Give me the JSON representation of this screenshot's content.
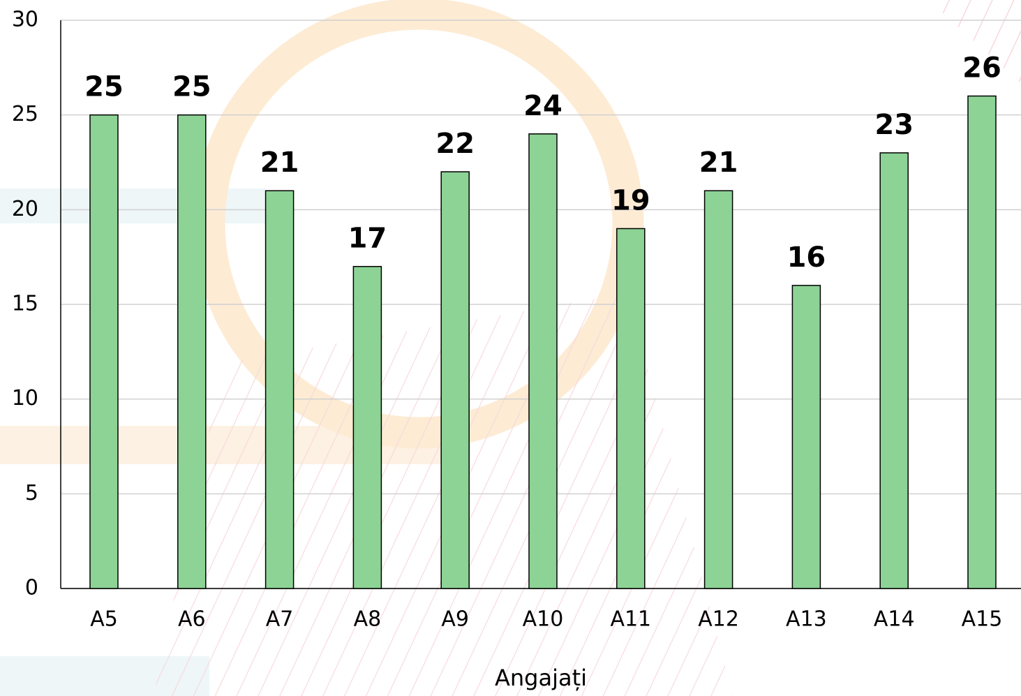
{
  "chart_data": {
    "type": "bar",
    "x_label": "Angajați",
    "categories": [
      "A5",
      "A6",
      "A7",
      "A8",
      "A9",
      "A10",
      "A11",
      "A12",
      "A13",
      "A14",
      "A15"
    ],
    "values": [
      25,
      25,
      21,
      17,
      22,
      24,
      19,
      21,
      16,
      23,
      26
    ],
    "color": "#8dd395",
    "ylim": [
      0,
      30
    ],
    "yticks": [
      0,
      5,
      10,
      15,
      20,
      25,
      30
    ],
    "grid": true
  }
}
